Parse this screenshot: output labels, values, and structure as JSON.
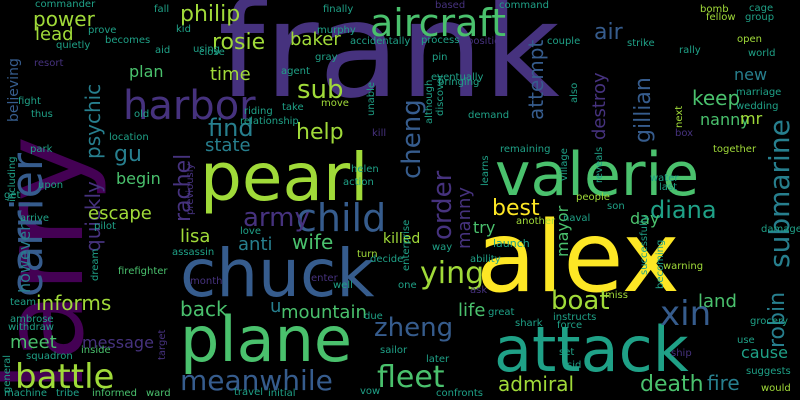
{
  "background": "#000000",
  "palette": [
    "#440154",
    "#46327e",
    "#365c8d",
    "#277f8e",
    "#1fa187",
    "#4ac16d",
    "#a0da39",
    "#fde725"
  ],
  "words": [
    {
      "text": "frank",
      "color": "#46327e"
    },
    {
      "text": "larry",
      "color": "#440154"
    },
    {
      "text": "alex",
      "color": "#fde725"
    },
    {
      "text": "pearl",
      "color": "#a0da39"
    },
    {
      "text": "chuck",
      "color": "#365c8d"
    },
    {
      "text": "valerie",
      "color": "#4ac16d"
    },
    {
      "text": "attack",
      "color": "#1fa187"
    },
    {
      "text": "plane",
      "color": "#4ac16d"
    },
    {
      "text": "carrier",
      "color": "#365c8d"
    },
    {
      "text": "aircraft",
      "color": "#4ac16d"
    },
    {
      "text": "submarine",
      "color": "#277f8e"
    },
    {
      "text": "child",
      "color": "#365c8d"
    },
    {
      "text": "harbor",
      "color": "#46327e"
    },
    {
      "text": "fleet",
      "color": "#4ac16d"
    },
    {
      "text": "battle",
      "color": "#a0da39"
    },
    {
      "text": "meanwhile",
      "color": "#365c8d"
    },
    {
      "text": "ying",
      "color": "#a0da39"
    },
    {
      "text": "boat",
      "color": "#a0da39"
    },
    {
      "text": "xin",
      "color": "#365c8d"
    },
    {
      "text": "zheng",
      "color": "#365c8d"
    },
    {
      "text": "cheng",
      "color": "#365c8d"
    },
    {
      "text": "robin",
      "color": "#277f8e"
    },
    {
      "text": "rachel",
      "color": "#46327e"
    },
    {
      "text": "quickly",
      "color": "#46327e"
    },
    {
      "text": "psychic",
      "color": "#277f8e"
    },
    {
      "text": "order",
      "color": "#46327e"
    },
    {
      "text": "diana",
      "color": "#1fa187"
    },
    {
      "text": "army",
      "color": "#46327e"
    },
    {
      "text": "philip",
      "color": "#a0da39"
    },
    {
      "text": "rosie",
      "color": "#a0da39"
    },
    {
      "text": "sub",
      "color": "#a0da39"
    },
    {
      "text": "find",
      "color": "#277f8e"
    },
    {
      "text": "help",
      "color": "#a0da39"
    },
    {
      "text": "gu",
      "color": "#277f8e"
    },
    {
      "text": "state",
      "color": "#277f8e"
    },
    {
      "text": "escape",
      "color": "#a0da39"
    },
    {
      "text": "best",
      "color": "#fde725"
    },
    {
      "text": "manny",
      "color": "#46327e"
    },
    {
      "text": "admiral",
      "color": "#a0da39"
    },
    {
      "text": "death",
      "color": "#4ac16d"
    },
    {
      "text": "fire",
      "color": "#277f8e"
    },
    {
      "text": "informs",
      "color": "#a0da39"
    },
    {
      "text": "mountain",
      "color": "#4ac16d"
    },
    {
      "text": "back",
      "color": "#4ac16d"
    },
    {
      "text": "wife",
      "color": "#4ac16d"
    },
    {
      "text": "anti",
      "color": "#277f8e"
    },
    {
      "text": "lisa",
      "color": "#a0da39"
    },
    {
      "text": "life",
      "color": "#4ac16d"
    },
    {
      "text": "land",
      "color": "#4ac16d"
    },
    {
      "text": "cause",
      "color": "#1fa187"
    },
    {
      "text": "keep",
      "color": "#4ac16d"
    },
    {
      "text": "nanny",
      "color": "#4ac16d"
    },
    {
      "text": "air",
      "color": "#365c8d"
    },
    {
      "text": "gillian",
      "color": "#365c8d"
    },
    {
      "text": "destroy",
      "color": "#46327e"
    },
    {
      "text": "attempt",
      "color": "#365c8d"
    },
    {
      "text": "power",
      "color": "#a0da39"
    },
    {
      "text": "lead",
      "color": "#a0da39"
    },
    {
      "text": "baker",
      "color": "#a0da39"
    },
    {
      "text": "time",
      "color": "#a0da39"
    },
    {
      "text": "plan",
      "color": "#4ac16d"
    },
    {
      "text": "new",
      "color": "#277f8e"
    },
    {
      "text": "mr",
      "color": "#a0da39"
    },
    {
      "text": "meet",
      "color": "#4ac16d"
    },
    {
      "text": "however",
      "color": "#277f8e"
    },
    {
      "text": "message",
      "color": "#46327e"
    },
    {
      "text": "begin",
      "color": "#4ac16d"
    },
    {
      "text": "try",
      "color": "#4ac16d"
    },
    {
      "text": "day",
      "color": "#4ac16d"
    },
    {
      "text": "mayor",
      "color": "#4ac16d"
    },
    {
      "text": "believing",
      "color": "#365c8d"
    },
    {
      "text": "killed",
      "color": "#a0da39"
    },
    {
      "text": "launch",
      "color": "#1fa187"
    },
    {
      "text": "u",
      "color": "#277f8e"
    },
    {
      "text": "commander",
      "color": "#1fa187"
    },
    {
      "text": "quietly",
      "color": "#1fa187"
    },
    {
      "text": "resort",
      "color": "#46327e"
    },
    {
      "text": "fight",
      "color": "#1fa187"
    },
    {
      "text": "thus",
      "color": "#1fa187"
    },
    {
      "text": "park",
      "color": "#1fa187"
    },
    {
      "text": "including",
      "color": "#1fa187"
    },
    {
      "text": "get",
      "color": "#1fa187"
    },
    {
      "text": "upon",
      "color": "#1fa187"
    },
    {
      "text": "arrive",
      "color": "#1fa187"
    },
    {
      "text": "pilot",
      "color": "#1fa187"
    },
    {
      "text": "assassin",
      "color": "#1fa187"
    },
    {
      "text": "firefighter",
      "color": "#4ac16d"
    },
    {
      "text": "team",
      "color": "#1fa187"
    },
    {
      "text": "ambrose",
      "color": "#1fa187"
    },
    {
      "text": "withdraw",
      "color": "#1fa187"
    },
    {
      "text": "squadron",
      "color": "#1fa187"
    },
    {
      "text": "machine",
      "color": "#1fa187"
    },
    {
      "text": "tribe",
      "color": "#1fa187"
    },
    {
      "text": "informed",
      "color": "#4ac16d"
    },
    {
      "text": "ward",
      "color": "#4ac16d"
    },
    {
      "text": "inside",
      "color": "#4ac16d"
    },
    {
      "text": "general",
      "color": "#1fa187"
    },
    {
      "text": "fall",
      "color": "#1fa187"
    },
    {
      "text": "kid",
      "color": "#1fa187"
    },
    {
      "text": "prove",
      "color": "#1fa187"
    },
    {
      "text": "becomes",
      "color": "#1fa187"
    },
    {
      "text": "aid",
      "color": "#1fa187"
    },
    {
      "text": "close",
      "color": "#1fa187"
    },
    {
      "text": "using",
      "color": "#1fa187"
    },
    {
      "text": "old",
      "color": "#1fa187"
    },
    {
      "text": "location",
      "color": "#1fa187"
    },
    {
      "text": "finally",
      "color": "#1fa187"
    },
    {
      "text": "murphy",
      "color": "#1fa187"
    },
    {
      "text": "gray",
      "color": "#1fa187"
    },
    {
      "text": "agent",
      "color": "#1fa187"
    },
    {
      "text": "take",
      "color": "#1fa187"
    },
    {
      "text": "move",
      "color": "#a0da39"
    },
    {
      "text": "riding",
      "color": "#1fa187"
    },
    {
      "text": "relationship",
      "color": "#1fa187"
    },
    {
      "text": "based",
      "color": "#46327e"
    },
    {
      "text": "accidentally",
      "color": "#1fa187"
    },
    {
      "text": "command",
      "color": "#1fa187"
    },
    {
      "text": "process",
      "color": "#1fa187"
    },
    {
      "text": "position",
      "color": "#46327e"
    },
    {
      "text": "couple",
      "color": "#1fa187"
    },
    {
      "text": "pin",
      "color": "#1fa187"
    },
    {
      "text": "eventually",
      "color": "#1fa187"
    },
    {
      "text": "bringing",
      "color": "#1fa187"
    },
    {
      "text": "unable",
      "color": "#1fa187"
    },
    {
      "text": "although",
      "color": "#1fa187"
    },
    {
      "text": "discover",
      "color": "#1fa187"
    },
    {
      "text": "demand",
      "color": "#1fa187"
    },
    {
      "text": "remaining",
      "color": "#1fa187"
    },
    {
      "text": "village",
      "color": "#1fa187"
    },
    {
      "text": "reveals",
      "color": "#1fa187"
    },
    {
      "text": "learns",
      "color": "#1fa187"
    },
    {
      "text": "also",
      "color": "#1fa187"
    },
    {
      "text": "kill",
      "color": "#46327e"
    },
    {
      "text": "helen",
      "color": "#1fa187"
    },
    {
      "text": "action",
      "color": "#1fa187"
    },
    {
      "text": "enterprise",
      "color": "#1fa187"
    },
    {
      "text": "ability",
      "color": "#1fa187"
    },
    {
      "text": "decide",
      "color": "#1fa187"
    },
    {
      "text": "turn",
      "color": "#a0da39"
    },
    {
      "text": "way",
      "color": "#1fa187"
    },
    {
      "text": "love",
      "color": "#1fa187"
    },
    {
      "text": "one",
      "color": "#1fa187"
    },
    {
      "text": "well",
      "color": "#1fa187"
    },
    {
      "text": "due",
      "color": "#1fa187"
    },
    {
      "text": "sailor",
      "color": "#1fa187"
    },
    {
      "text": "vow",
      "color": "#1fa187"
    },
    {
      "text": "later",
      "color": "#1fa187"
    },
    {
      "text": "confronts",
      "color": "#1fa187"
    },
    {
      "text": "travel",
      "color": "#1fa187"
    },
    {
      "text": "initial",
      "color": "#1fa187"
    },
    {
      "text": "great",
      "color": "#1fa187"
    },
    {
      "text": "shark",
      "color": "#1fa187"
    },
    {
      "text": "instructs",
      "color": "#1fa187"
    },
    {
      "text": "force",
      "color": "#1fa187"
    },
    {
      "text": "set",
      "color": "#1fa187"
    },
    {
      "text": "sid",
      "color": "#1fa187"
    },
    {
      "text": "ship",
      "color": "#46327e"
    },
    {
      "text": "miss",
      "color": "#a0da39"
    },
    {
      "text": "bomb",
      "color": "#a0da39"
    },
    {
      "text": "fellow",
      "color": "#a0da39"
    },
    {
      "text": "cage",
      "color": "#1fa187"
    },
    {
      "text": "group",
      "color": "#1fa187"
    },
    {
      "text": "open",
      "color": "#a0da39"
    },
    {
      "text": "strike",
      "color": "#1fa187"
    },
    {
      "text": "rally",
      "color": "#1fa187"
    },
    {
      "text": "world",
      "color": "#1fa187"
    },
    {
      "text": "marriage",
      "color": "#1fa187"
    },
    {
      "text": "wedding",
      "color": "#1fa187"
    },
    {
      "text": "next",
      "color": "#a0da39"
    },
    {
      "text": "box",
      "color": "#46327e"
    },
    {
      "text": "together",
      "color": "#a0da39"
    },
    {
      "text": "water",
      "color": "#1fa187"
    },
    {
      "text": "last",
      "color": "#1fa187"
    },
    {
      "text": "son",
      "color": "#1fa187"
    },
    {
      "text": "people",
      "color": "#a0da39"
    },
    {
      "text": "another",
      "color": "#a0da39"
    },
    {
      "text": "naval",
      "color": "#1fa187"
    },
    {
      "text": "successfully",
      "color": "#1fa187"
    },
    {
      "text": "becoming",
      "color": "#1fa187"
    },
    {
      "text": "warning",
      "color": "#a0da39"
    },
    {
      "text": "damaged",
      "color": "#1fa187"
    },
    {
      "text": "grocery",
      "color": "#1fa187"
    },
    {
      "text": "use",
      "color": "#1fa187"
    },
    {
      "text": "suggests",
      "color": "#1fa187"
    },
    {
      "text": "would",
      "color": "#a0da39"
    },
    {
      "text": "dream",
      "color": "#1fa187"
    },
    {
      "text": "target",
      "color": "#46327e"
    },
    {
      "text": "month",
      "color": "#46327e"
    },
    {
      "text": "enter",
      "color": "#46327e"
    },
    {
      "text": "previously",
      "color": "#46327e"
    },
    {
      "text": "ask",
      "color": "#46327e"
    }
  ]
}
